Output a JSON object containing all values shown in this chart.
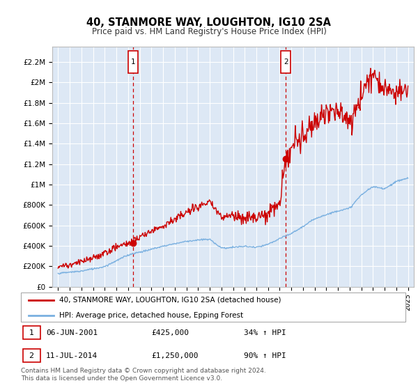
{
  "title": "40, STANMORE WAY, LOUGHTON, IG10 2SA",
  "subtitle": "Price paid vs. HM Land Registry's House Price Index (HPI)",
  "ylabel_ticks": [
    "£0",
    "£200K",
    "£400K",
    "£600K",
    "£800K",
    "£1M",
    "£1.2M",
    "£1.4M",
    "£1.6M",
    "£1.8M",
    "£2M",
    "£2.2M"
  ],
  "ytick_values": [
    0,
    200000,
    400000,
    600000,
    800000,
    1000000,
    1200000,
    1400000,
    1600000,
    1800000,
    2000000,
    2200000
  ],
  "xlim_years": [
    1994.5,
    2025.5
  ],
  "ylim": [
    0,
    2350000
  ],
  "hpi_color": "#7ab0e0",
  "price_color": "#cc0000",
  "marker1_year": 2001.44,
  "marker2_year": 2014.53,
  "marker1_price": 425000,
  "marker2_price": 1250000,
  "legend_line1": "40, STANMORE WAY, LOUGHTON, IG10 2SA (detached house)",
  "legend_line2": "HPI: Average price, detached house, Epping Forest",
  "table_row1": [
    "1",
    "06-JUN-2001",
    "£425,000",
    "34% ↑ HPI"
  ],
  "table_row2": [
    "2",
    "11-JUL-2014",
    "£1,250,000",
    "90% ↑ HPI"
  ],
  "footnote": "Contains HM Land Registry data © Crown copyright and database right 2024.\nThis data is licensed under the Open Government Licence v3.0.",
  "plot_bg_color": "#dde8f5",
  "fig_bg_color": "#ffffff",
  "grid_color": "#ffffff",
  "spine_color": "#bbbbbb"
}
